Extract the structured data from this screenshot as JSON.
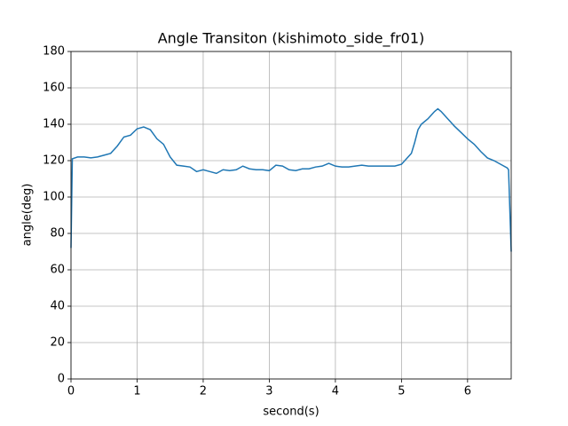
{
  "chart_data": {
    "type": "line",
    "title": "Angle Transiton (kishimoto_side_fr01)",
    "x_label": "second(s)",
    "y_label": "angle(deg)",
    "x": [
      0,
      0.02,
      0.1,
      0.2,
      0.3,
      0.4,
      0.5,
      0.6,
      0.7,
      0.8,
      0.9,
      1.0,
      1.1,
      1.2,
      1.3,
      1.4,
      1.5,
      1.6,
      1.7,
      1.8,
      1.9,
      2.0,
      2.1,
      2.2,
      2.3,
      2.4,
      2.5,
      2.6,
      2.7,
      2.8,
      2.9,
      3.0,
      3.1,
      3.2,
      3.3,
      3.4,
      3.5,
      3.6,
      3.7,
      3.8,
      3.9,
      4.0,
      4.1,
      4.2,
      4.3,
      4.4,
      4.5,
      4.6,
      4.7,
      4.8,
      4.9,
      5.0,
      5.1,
      5.15,
      5.2,
      5.25,
      5.3,
      5.4,
      5.5,
      5.55,
      5.6,
      5.7,
      5.8,
      5.9,
      6.0,
      6.1,
      6.2,
      6.3,
      6.4,
      6.5,
      6.6,
      6.62,
      6.66
    ],
    "series": [
      {
        "name": "angle",
        "color": "#1f77b4",
        "values": [
          72,
          121,
          122,
          122,
          121.5,
          122,
          123,
          124,
          128,
          133,
          134,
          137.5,
          138.5,
          137,
          132,
          129,
          122,
          117.5,
          117,
          116.5,
          114,
          115,
          114,
          113,
          115,
          114.5,
          115,
          117,
          115.5,
          115,
          115,
          114.5,
          117.5,
          117,
          115,
          114.5,
          115.5,
          115.5,
          116.5,
          117,
          118.5,
          117,
          116.5,
          116.5,
          117,
          117.5,
          117,
          117,
          117,
          117,
          117,
          118,
          122,
          124,
          130,
          137,
          140,
          143,
          147,
          148.5,
          147,
          143,
          139,
          135.5,
          132,
          129,
          125,
          121.5,
          120,
          118,
          116,
          115,
          70
        ]
      }
    ],
    "xlim": [
      0,
      6.66
    ],
    "ylim": [
      0,
      180
    ],
    "xticks": [
      0,
      1,
      2,
      3,
      4,
      5,
      6
    ],
    "yticks": [
      0,
      20,
      40,
      60,
      80,
      100,
      120,
      140,
      160,
      180
    ],
    "grid": true
  }
}
